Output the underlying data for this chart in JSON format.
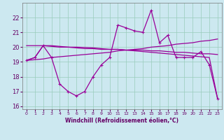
{
  "background_color": "#cce8f0",
  "grid_color": "#99ccbb",
  "line_color": "#990099",
  "xlabel": "Windchill (Refroidissement éolien,°C)",
  "x": [
    0,
    1,
    2,
    3,
    4,
    5,
    6,
    7,
    8,
    9,
    10,
    11,
    12,
    13,
    14,
    15,
    16,
    17,
    18,
    19,
    20,
    21,
    22,
    23
  ],
  "line1_zigzag": [
    19.1,
    19.3,
    20.1,
    19.3,
    17.5,
    17.0,
    16.7,
    17.0,
    18.0,
    18.8,
    19.3,
    21.5,
    21.3,
    21.1,
    21.0,
    22.5,
    20.3,
    20.8,
    19.3,
    19.3,
    19.3,
    19.7,
    18.8,
    16.5
  ],
  "line2_flat_high": [
    20.1,
    20.1,
    20.1,
    20.05,
    20.0,
    20.0,
    19.95,
    19.9,
    19.9,
    19.85,
    19.85,
    19.85,
    19.8,
    19.8,
    19.8,
    19.75,
    19.75,
    19.7,
    19.65,
    19.65,
    19.6,
    19.55,
    19.55,
    19.5
  ],
  "line3_rising": [
    19.1,
    19.15,
    19.2,
    19.3,
    19.35,
    19.4,
    19.45,
    19.5,
    19.55,
    19.6,
    19.65,
    19.75,
    19.8,
    19.85,
    19.9,
    20.0,
    20.05,
    20.1,
    20.2,
    20.25,
    20.3,
    20.4,
    20.45,
    20.55
  ],
  "line4_diagonal": [
    19.1,
    19.3,
    20.1,
    20.1,
    20.05,
    20.0,
    20.0,
    19.98,
    19.95,
    19.9,
    19.85,
    19.85,
    19.8,
    19.75,
    19.7,
    19.65,
    19.6,
    19.55,
    19.5,
    19.45,
    19.4,
    19.35,
    19.3,
    16.5
  ],
  "ylim": [
    15.8,
    23.0
  ],
  "yticks": [
    16,
    17,
    18,
    19,
    20,
    21,
    22
  ],
  "xlim": [
    -0.5,
    23.5
  ]
}
